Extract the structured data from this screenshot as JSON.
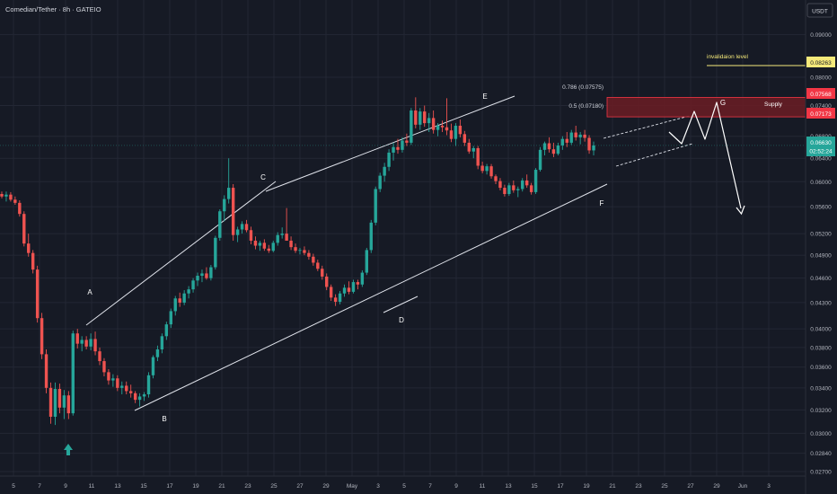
{
  "header": {
    "symbol": "Comedian/Tether · 8h · GATEIO"
  },
  "price_axis": {
    "currency": "USDT",
    "ticks": [
      "0.09000",
      "0.08000",
      "0.07400",
      "0.06800",
      "0.06400",
      "0.06000",
      "0.05600",
      "0.05200",
      "0.04900",
      "0.04600",
      "0.04300",
      "0.04000",
      "0.03800",
      "0.03600",
      "0.03400",
      "0.03200",
      "0.03000",
      "0.02840",
      "0.02700"
    ],
    "labels": {
      "invalidation": "0.08263",
      "supply_top": "0.07568",
      "supply_bottom": "0.07173",
      "current_price": "0.06630",
      "countdown": "02:52:24"
    }
  },
  "time_axis": {
    "ticks": [
      "5",
      "7",
      "9",
      "11",
      "13",
      "15",
      "17",
      "19",
      "21",
      "23",
      "25",
      "27",
      "29",
      "May",
      "3",
      "5",
      "7",
      "9",
      "11",
      "13",
      "15",
      "17",
      "19",
      "21",
      "23",
      "25",
      "27",
      "29",
      "Jun",
      "3"
    ]
  },
  "annotations": {
    "invalidation_label": "invalidaion level",
    "supply_label": "Supply",
    "fib_786": "0.786 (0.07575)",
    "fib_50": "0.5 (0.07180)",
    "wave_a": "A",
    "wave_b": "B",
    "wave_c": "C",
    "wave_d": "D",
    "wave_e": "E",
    "wave_f": "F",
    "wave_g": "G"
  },
  "colors": {
    "background": "#161a25",
    "up": "#26a69a",
    "down": "#ef5350",
    "grid": "#232734",
    "supply_zone": "#6b1d25",
    "invalidation": "#f5e97a",
    "current_price": "#26a69a",
    "arrow": "#26a69a"
  },
  "chart_data": {
    "type": "candlestick",
    "timeframe": "8h",
    "ylim": [
      0.0268,
      0.098
    ],
    "y_scale": "log",
    "grid": true,
    "levels": {
      "invalidation": 0.08263,
      "supply_top": 0.07568,
      "supply_bottom": 0.07173,
      "last_price": 0.0663
    },
    "waves": {
      "A": 0.0397,
      "B": 0.0323,
      "C": 0.0592,
      "D": 0.0428,
      "E": 0.0757,
      "F": 0.0579,
      "G": 0.0727
    },
    "ohlc": [
      [
        0.058,
        0.0584,
        0.0573,
        0.0576
      ],
      [
        0.0576,
        0.0584,
        0.0568,
        0.0579
      ],
      [
        0.0579,
        0.0583,
        0.0568,
        0.0571
      ],
      [
        0.0571,
        0.0576,
        0.0563,
        0.0566
      ],
      [
        0.0566,
        0.057,
        0.0545,
        0.0549
      ],
      [
        0.0549,
        0.0553,
        0.0502,
        0.0506
      ],
      [
        0.0506,
        0.052,
        0.0488,
        0.0493
      ],
      [
        0.0493,
        0.0497,
        0.0466,
        0.0471
      ],
      [
        0.0471,
        0.0476,
        0.0407,
        0.0412
      ],
      [
        0.0412,
        0.0418,
        0.0368,
        0.0373
      ],
      [
        0.0373,
        0.0378,
        0.0335,
        0.034
      ],
      [
        0.034,
        0.0345,
        0.0308,
        0.0314
      ],
      [
        0.0314,
        0.0345,
        0.0307,
        0.0339
      ],
      [
        0.0339,
        0.0344,
        0.0317,
        0.0322
      ],
      [
        0.0322,
        0.0338,
        0.0312,
        0.0333
      ],
      [
        0.0333,
        0.0337,
        0.0312,
        0.0317
      ],
      [
        0.0317,
        0.0398,
        0.0315,
        0.0395
      ],
      [
        0.0395,
        0.04,
        0.0379,
        0.0384
      ],
      [
        0.0384,
        0.0392,
        0.0376,
        0.0388
      ],
      [
        0.0388,
        0.0392,
        0.0378,
        0.0381
      ],
      [
        0.0381,
        0.0395,
        0.0377,
        0.0389
      ],
      [
        0.0389,
        0.0397,
        0.0372,
        0.0376
      ],
      [
        0.0376,
        0.038,
        0.0362,
        0.0366
      ],
      [
        0.0366,
        0.0369,
        0.0351,
        0.0355
      ],
      [
        0.0355,
        0.0358,
        0.0343,
        0.0347
      ],
      [
        0.0347,
        0.0353,
        0.0341,
        0.0349
      ],
      [
        0.0349,
        0.0352,
        0.0337,
        0.034
      ],
      [
        0.034,
        0.0346,
        0.0334,
        0.0342
      ],
      [
        0.0342,
        0.0346,
        0.0334,
        0.0337
      ],
      [
        0.0337,
        0.0343,
        0.0331,
        0.0335
      ],
      [
        0.0335,
        0.0337,
        0.0326,
        0.0329
      ],
      [
        0.0329,
        0.0335,
        0.0323,
        0.0332
      ],
      [
        0.0332,
        0.0336,
        0.0328,
        0.0334
      ],
      [
        0.0334,
        0.0355,
        0.0331,
        0.0352
      ],
      [
        0.0352,
        0.0372,
        0.0349,
        0.037
      ],
      [
        0.037,
        0.0382,
        0.0366,
        0.0378
      ],
      [
        0.0378,
        0.0395,
        0.0374,
        0.0392
      ],
      [
        0.0392,
        0.0408,
        0.0388,
        0.0405
      ],
      [
        0.0405,
        0.0423,
        0.0401,
        0.042
      ],
      [
        0.042,
        0.0438,
        0.0415,
        0.0435
      ],
      [
        0.0435,
        0.0442,
        0.0425,
        0.043
      ],
      [
        0.043,
        0.0445,
        0.0427,
        0.0441
      ],
      [
        0.0441,
        0.045,
        0.0435,
        0.0446
      ],
      [
        0.0446,
        0.046,
        0.0442,
        0.0457
      ],
      [
        0.0457,
        0.0467,
        0.045,
        0.0463
      ],
      [
        0.0463,
        0.0471,
        0.0455,
        0.0466
      ],
      [
        0.0466,
        0.0474,
        0.0458,
        0.046
      ],
      [
        0.046,
        0.0477,
        0.0457,
        0.0474
      ],
      [
        0.0474,
        0.0517,
        0.0471,
        0.0514
      ],
      [
        0.0514,
        0.0556,
        0.051,
        0.0553
      ],
      [
        0.0553,
        0.0578,
        0.0538,
        0.0572
      ],
      [
        0.0572,
        0.064,
        0.0565,
        0.059
      ],
      [
        0.059,
        0.0596,
        0.051,
        0.0518
      ],
      [
        0.0518,
        0.053,
        0.0508,
        0.0526
      ],
      [
        0.0526,
        0.0538,
        0.052,
        0.0534
      ],
      [
        0.0534,
        0.054,
        0.0522,
        0.0525
      ],
      [
        0.0525,
        0.053,
        0.0505,
        0.051
      ],
      [
        0.051,
        0.0516,
        0.0498,
        0.0503
      ],
      [
        0.0503,
        0.051,
        0.0496,
        0.0507
      ],
      [
        0.0507,
        0.0512,
        0.0496,
        0.0499
      ],
      [
        0.0499,
        0.0504,
        0.0493,
        0.0496
      ],
      [
        0.0496,
        0.051,
        0.0494,
        0.0507
      ],
      [
        0.0507,
        0.0522,
        0.0503,
        0.0518
      ],
      [
        0.0518,
        0.0529,
        0.0513,
        0.052
      ],
      [
        0.052,
        0.0558,
        0.0514,
        0.051
      ],
      [
        0.051,
        0.0516,
        0.0497,
        0.0501
      ],
      [
        0.0501,
        0.0506,
        0.0493,
        0.0496
      ],
      [
        0.0496,
        0.05,
        0.0491,
        0.0497
      ],
      [
        0.0497,
        0.0502,
        0.049,
        0.0493
      ],
      [
        0.0493,
        0.0497,
        0.0484,
        0.0488
      ],
      [
        0.0488,
        0.0492,
        0.0476,
        0.048
      ],
      [
        0.048,
        0.0484,
        0.0469,
        0.0472
      ],
      [
        0.0472,
        0.0476,
        0.0458,
        0.0462
      ],
      [
        0.0462,
        0.0466,
        0.0445,
        0.0449
      ],
      [
        0.0449,
        0.0452,
        0.0432,
        0.0436
      ],
      [
        0.0436,
        0.044,
        0.0426,
        0.0431
      ],
      [
        0.0431,
        0.0444,
        0.0428,
        0.0441
      ],
      [
        0.0441,
        0.0452,
        0.0437,
        0.0448
      ],
      [
        0.0448,
        0.0456,
        0.044,
        0.0443
      ],
      [
        0.0443,
        0.0458,
        0.0441,
        0.0455
      ],
      [
        0.0455,
        0.0458,
        0.0446,
        0.0452
      ],
      [
        0.0452,
        0.047,
        0.0449,
        0.0467
      ],
      [
        0.0467,
        0.05,
        0.0464,
        0.0497
      ],
      [
        0.0497,
        0.054,
        0.0493,
        0.0536
      ],
      [
        0.0536,
        0.0592,
        0.0532,
        0.0588
      ],
      [
        0.0588,
        0.0615,
        0.0583,
        0.061
      ],
      [
        0.061,
        0.0632,
        0.06,
        0.0625
      ],
      [
        0.0625,
        0.0656,
        0.0618,
        0.065
      ],
      [
        0.065,
        0.0668,
        0.0636,
        0.066
      ],
      [
        0.066,
        0.0675,
        0.0648,
        0.0655
      ],
      [
        0.0655,
        0.0678,
        0.065,
        0.0672
      ],
      [
        0.0672,
        0.0685,
        0.0662,
        0.0668
      ],
      [
        0.0668,
        0.0735,
        0.0664,
        0.073
      ],
      [
        0.073,
        0.0757,
        0.0695,
        0.0702
      ],
      [
        0.0702,
        0.0735,
        0.0692,
        0.0728
      ],
      [
        0.0728,
        0.074,
        0.0698,
        0.0705
      ],
      [
        0.0705,
        0.0725,
        0.0688,
        0.0715
      ],
      [
        0.0715,
        0.073,
        0.0685,
        0.0692
      ],
      [
        0.0692,
        0.0705,
        0.068,
        0.07
      ],
      [
        0.07,
        0.071,
        0.0688,
        0.0697
      ],
      [
        0.0697,
        0.0755,
        0.0682,
        0.0691
      ],
      [
        0.0691,
        0.0704,
        0.0669,
        0.0675
      ],
      [
        0.0675,
        0.0705,
        0.0662,
        0.07
      ],
      [
        0.07,
        0.0712,
        0.0678,
        0.0684
      ],
      [
        0.0684,
        0.069,
        0.0662,
        0.0668
      ],
      [
        0.0668,
        0.0675,
        0.0648,
        0.0652
      ],
      [
        0.0652,
        0.0662,
        0.064,
        0.0658
      ],
      [
        0.0658,
        0.0662,
        0.0621,
        0.0627
      ],
      [
        0.0627,
        0.0634,
        0.0614,
        0.0618
      ],
      [
        0.0618,
        0.063,
        0.0612,
        0.0626
      ],
      [
        0.0626,
        0.063,
        0.0605,
        0.0609
      ],
      [
        0.0609,
        0.0612,
        0.0596,
        0.0601
      ],
      [
        0.0601,
        0.0606,
        0.0586,
        0.059
      ],
      [
        0.059,
        0.0595,
        0.0576,
        0.058
      ],
      [
        0.058,
        0.0598,
        0.0577,
        0.0594
      ],
      [
        0.0594,
        0.0602,
        0.0582,
        0.0586
      ],
      [
        0.0586,
        0.0592,
        0.0575,
        0.0588
      ],
      [
        0.0588,
        0.0606,
        0.0584,
        0.0602
      ],
      [
        0.0602,
        0.0612,
        0.059,
        0.0594
      ],
      [
        0.0594,
        0.0598,
        0.0579,
        0.0583
      ],
      [
        0.0583,
        0.0623,
        0.058,
        0.062
      ],
      [
        0.062,
        0.066,
        0.0617,
        0.0655
      ],
      [
        0.0655,
        0.067,
        0.0645,
        0.0667
      ],
      [
        0.0667,
        0.0678,
        0.065,
        0.0656
      ],
      [
        0.0656,
        0.0668,
        0.0642,
        0.0648
      ],
      [
        0.0648,
        0.0668,
        0.0645,
        0.0663
      ],
      [
        0.0663,
        0.068,
        0.0655,
        0.0675
      ],
      [
        0.0675,
        0.0688,
        0.066,
        0.0668
      ],
      [
        0.0668,
        0.0692,
        0.0664,
        0.0687
      ],
      [
        0.0687,
        0.07,
        0.0672,
        0.0678
      ],
      [
        0.0678,
        0.0688,
        0.0665,
        0.0683
      ],
      [
        0.0683,
        0.0692,
        0.067,
        0.0677
      ],
      [
        0.0677,
        0.0682,
        0.0648,
        0.0654
      ],
      [
        0.0654,
        0.067,
        0.0645,
        0.0663
      ]
    ]
  }
}
